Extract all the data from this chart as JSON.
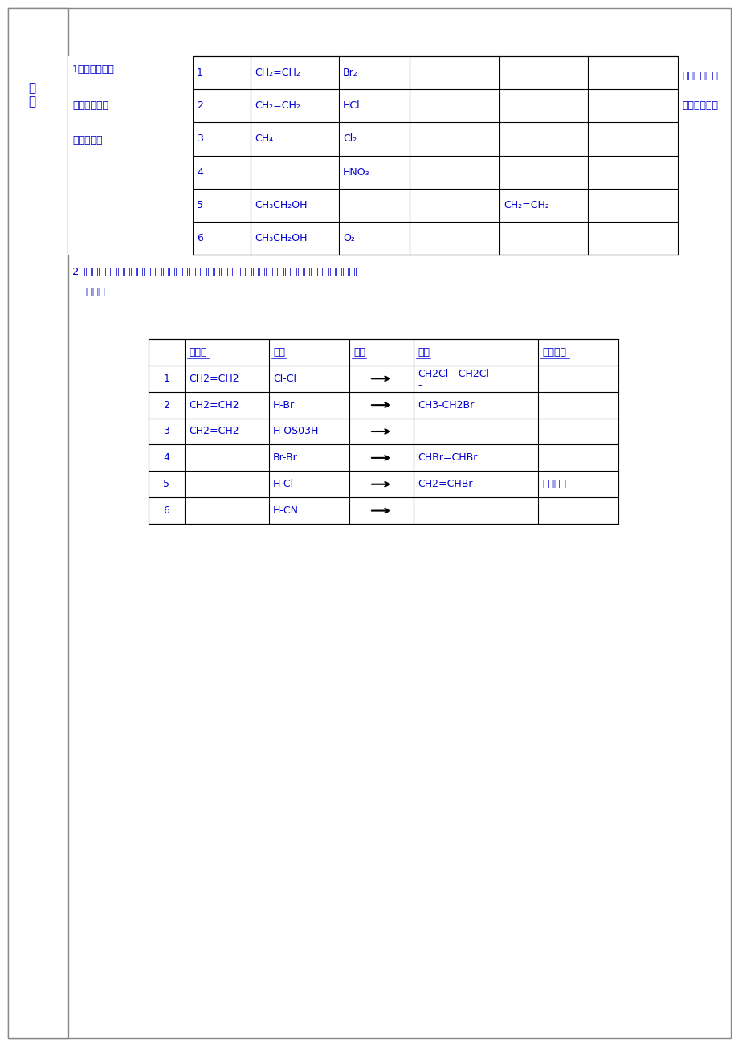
{
  "bg_color": "#ffffff",
  "text_color": "#0000cc",
  "border_color": "#000000",
  "page_bg": "#e8e8e8",
  "table1": {
    "title_left": "1：完成下列有\n\n程式，思考有\n\n哪些类型？",
    "title_right_lines": [
      "机化学反应方",
      "机化学反应有"
    ],
    "left_label": "学\n习",
    "rows": [
      {
        "num": "1",
        "col2": "CH₂=CH₂",
        "col3": "Br₂",
        "col4": "",
        "col5": "",
        "col6": ""
      },
      {
        "num": "2",
        "col2": "CH₂=CH₂",
        "col3": "HCl",
        "col4": "",
        "col5": "",
        "col6": ""
      },
      {
        "num": "3",
        "col2": "CH₄",
        "col3": "Cl₂",
        "col4": "",
        "col5": "",
        "col6": ""
      },
      {
        "num": "4",
        "col2": "",
        "col3": "HNO₃",
        "col4": "",
        "col5": "",
        "col6": ""
      },
      {
        "num": "5",
        "col2": "CH₃CH₂OH",
        "col3": "",
        "col4": "",
        "col5": "CH₂=CH₂",
        "col6": ""
      },
      {
        "num": "6",
        "col2": "CH₃CH₂OH",
        "col3": "O₂",
        "col4": "",
        "col5": "",
        "col6": ""
      }
    ]
  },
  "section2_text": "2：书写下列未完成的加成反应方程式，体会加成反应的规律，归纳加成反应反应物的结构与试剂的对\n    应关系",
  "table2": {
    "headers": [
      "",
      "反应物",
      "试剂",
      "条件",
      "产物",
      "反应类型"
    ],
    "rows": [
      {
        "num": "1",
        "reactant": "CH2=CH2",
        "reagent": "Cl-Cl",
        "condition": "→",
        "product": "CH2Cl—CH2Cl\n-",
        "type": ""
      },
      {
        "num": "2",
        "reactant": "CH2=CH2",
        "reagent": "H-Br",
        "condition": "→",
        "product": "CH3-CH2Br",
        "type": ""
      },
      {
        "num": "3",
        "reactant": "CH2=CH2",
        "reagent": "H-OS03H",
        "condition": "→",
        "product": "",
        "type": ""
      },
      {
        "num": "4",
        "reactant": "",
        "reagent": "Br-Br",
        "condition": "→",
        "product": "CHBr=CHBr",
        "type": ""
      },
      {
        "num": "5",
        "reactant": "",
        "reagent": "H-Cl",
        "condition": "→",
        "product": "CH2=CHBr",
        "type": "加成反应"
      },
      {
        "num": "6",
        "reactant": "",
        "reagent": "H-CN",
        "condition": "→",
        "product": "",
        "type": ""
      }
    ]
  }
}
